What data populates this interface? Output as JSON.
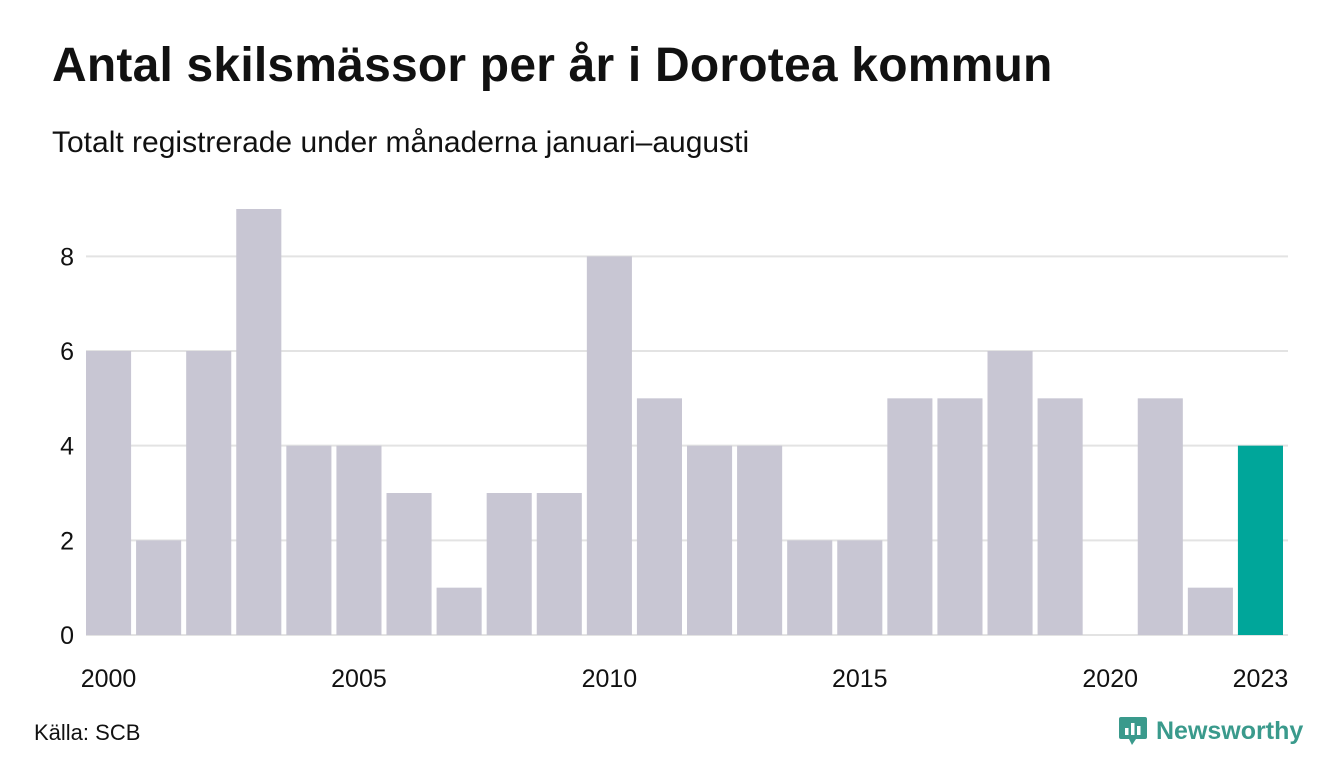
{
  "title": "Antal skilsmässor per år i Dorotea kommun",
  "subtitle": "Totalt registrerade under månaderna januari–augusti",
  "source": "Källa: SCB",
  "brand": {
    "name": "Newsworthy",
    "icon": "newsworthy-logo-icon",
    "color": "#3a9a8c"
  },
  "colors": {
    "bar": "#c8c6d3",
    "highlight": "#00a69a",
    "grid": "#e3e3e3"
  },
  "chart_data": {
    "type": "bar",
    "categories": [
      "2000",
      "2001",
      "2002",
      "2003",
      "2004",
      "2005",
      "2006",
      "2007",
      "2008",
      "2009",
      "2010",
      "2011",
      "2012",
      "2013",
      "2014",
      "2015",
      "2016",
      "2017",
      "2018",
      "2019",
      "2020",
      "2021",
      "2022",
      "2023"
    ],
    "values": [
      6,
      2,
      6,
      9,
      4,
      4,
      3,
      1,
      3,
      3,
      8,
      5,
      4,
      4,
      2,
      2,
      5,
      5,
      6,
      5,
      0,
      5,
      1,
      4
    ],
    "highlight_category": "2023",
    "x_tick_labels": [
      "2000",
      "2005",
      "2010",
      "2015",
      "2020",
      "2023"
    ],
    "y_ticks": [
      0,
      2,
      4,
      6,
      8
    ],
    "ylim": [
      0,
      9
    ],
    "grid": true,
    "legend": "none"
  }
}
